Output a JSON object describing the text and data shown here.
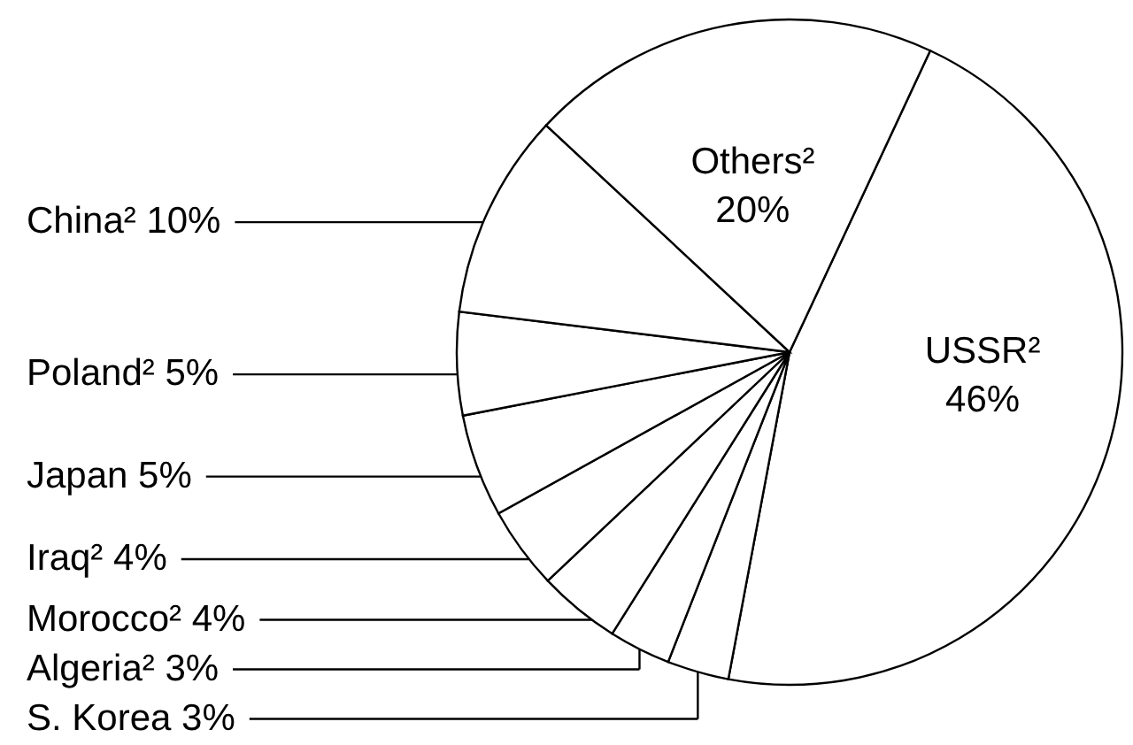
{
  "chart_data": {
    "type": "pie",
    "categories": [
      "USSR²",
      "S. Korea",
      "Algeria²",
      "Morocco²",
      "Iraq²",
      "Japan",
      "Poland²",
      "China²",
      "Others²"
    ],
    "values": [
      46,
      3,
      3,
      4,
      4,
      5,
      5,
      10,
      20
    ],
    "value_labels": [
      "46%",
      "3%",
      "3%",
      "4%",
      "4%",
      "5%",
      "5%",
      "10%",
      "20%"
    ],
    "colors": [
      "#ffffff",
      "#ffffff",
      "#ffffff",
      "#ffffff",
      "#ffffff",
      "#ffffff",
      "#ffffff",
      "#ffffff",
      "#ffffff"
    ]
  }
}
